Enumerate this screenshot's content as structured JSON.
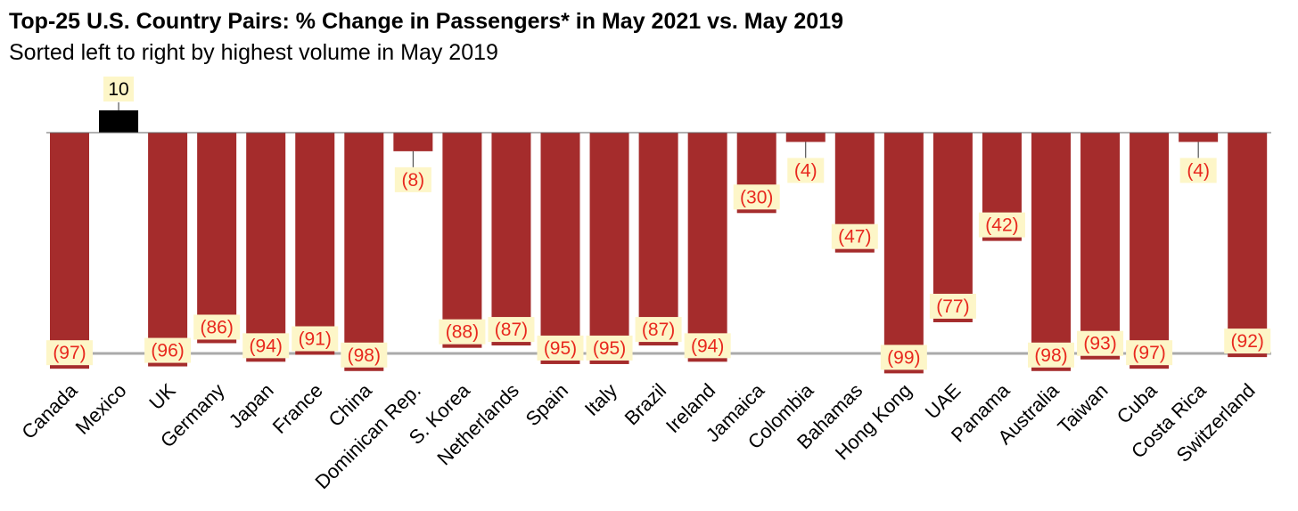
{
  "title": "Top-25 U.S. Country Pairs: % Change in Passengers* in May 2021 vs. May 2019",
  "subtitle": "Sorted left to right by highest volume in May 2019",
  "chart_data": {
    "type": "bar",
    "categories": [
      "Canada",
      "Mexico",
      "UK",
      "Germany",
      "Japan",
      "France",
      "China",
      "Dominican Rep.",
      "S. Korea",
      "Netherlands",
      "Spain",
      "Italy",
      "Brazil",
      "Ireland",
      "Jamaica",
      "Colombia",
      "Bahamas",
      "Hong Kong",
      "UAE",
      "Panama",
      "Australia",
      "Taiwan",
      "Cuba",
      "Costa Rica",
      "Switzerland"
    ],
    "values": [
      -97,
      10,
      -96,
      -86,
      -94,
      -91,
      -98,
      -8,
      -88,
      -87,
      -95,
      -95,
      -87,
      -94,
      -30,
      -4,
      -47,
      -99,
      -77,
      -42,
      -98,
      -93,
      -97,
      -4,
      -92
    ],
    "data_labels": [
      "(97)",
      "10",
      "(96)",
      "(86)",
      "(94)",
      "(91)",
      "(98)",
      "(8)",
      "(88)",
      "(87)",
      "(95)",
      "(95)",
      "(87)",
      "(94)",
      "(30)",
      "(4)",
      "(47)",
      "(99)",
      "(77)",
      "(42)",
      "(98)",
      "(93)",
      "(97)",
      "(4)",
      "(92)"
    ],
    "reference_line": -95,
    "colors": {
      "negative": "#a52c2c",
      "positive": "#000000",
      "label_text": "#e8281e",
      "label_bg": "#fdf6c8",
      "reference": "#aaaaaa"
    }
  }
}
